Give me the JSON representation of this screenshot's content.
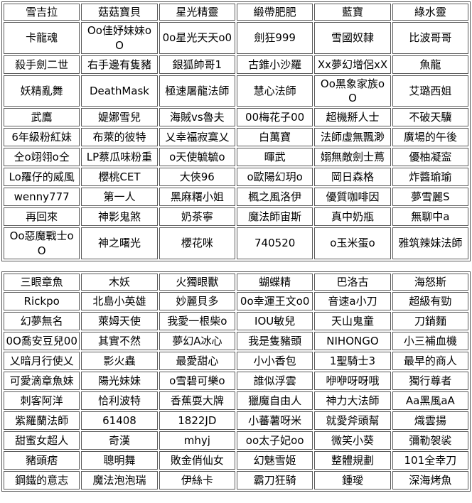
{
  "tables": [
    {
      "name": "ranking-table-top",
      "headers": [
        "雪吉拉",
        "菇菇寶貝",
        "星光精靈",
        "緞帶肥肥",
        "藍寶",
        "綠水靈"
      ],
      "rows": [
        [
          "卡龍魂",
          "Oo佳妤妹妹oO",
          "0o星光天天o0",
          "劍狂999",
          "雪國奴隸",
          "比波哥哥"
        ],
        [
          "殺手劍二世",
          "右手邊有隻豬",
          "銀狐帥哥1",
          "古錐小沙羅",
          "Xx夢幻增侶xX",
          "魚龍"
        ],
        [
          "妖精亂舞",
          "DeathMask",
          "極速屠龍法師",
          "慧心法師",
          "Oo黑象家族oO",
          "艾璐西姐"
        ],
        [
          "武鷹",
          "媞娜雪兒",
          "海賊vs魯夫",
          "00梅花子00",
          "超機掰人士",
          "不破天驥"
        ],
        [
          "6年級粉紅妹",
          "布萊的彼特",
          "乂幸福寂寞乂",
          "白萬寶",
          "法師虛無飄渺",
          "廣場的午後"
        ],
        [
          "仝o翊翎o仝",
          "LP蔡瓜味粉重",
          "o天使毓毓o",
          "暉武",
          "嫋無敵劍士蔦",
          "優柚凝寍"
        ],
        [
          "Lo羅仔的威風",
          "櫻桃CET",
          "大俠96",
          "o歐陽幻玥o",
          "岡日森格",
          "炸醬瑜瑜"
        ],
        [
          "wenny777",
          "第一人",
          "黑麻糬小姐",
          "楓之風洛伊",
          "優質咖啡因",
          "夢雪麗S"
        ],
        [
          "再回來",
          "神影鬼煞",
          "奶茶寧",
          "魔法師宙斯",
          "真中奶瓶",
          "無聊中a"
        ],
        [
          "Oo惡魔戰士oO",
          "神之曙光",
          "櫻花咪",
          "740520",
          "o玉米蛋o",
          "雅筑辣妹法師"
        ]
      ]
    },
    {
      "name": "ranking-table-bottom",
      "headers": [
        "三眼章魚",
        "木妖",
        "火獨眼獸",
        "蝴蝶精",
        "巴洛古",
        "海怒斯"
      ],
      "rows": [
        [
          "Rickpo",
          "北島小英雄",
          "妙麗貝多",
          "0o幸運王文o0",
          "音速a小刀",
          "超級有勁"
        ],
        [
          "幻夢無名",
          "萊姆天使",
          "我愛一根柴o",
          "IOU敏兒",
          "天山鬼童",
          "刀銷麵"
        ],
        [
          "0O喬安豆兒00",
          "其實不然",
          "夢幻A冰心",
          "我是隻豬頭",
          "NIHONGO",
          "小三補血機"
        ],
        [
          "乂暗月行使乂",
          "影火蟲",
          "最愛甜心",
          "小小香包",
          "1聖騎士3",
          "最早的商人"
        ],
        [
          "可愛滴章魚妹",
          "陽光妹妹",
          "o雪碧可樂o",
          "誰似浮雲",
          "咿咿呀呀哦",
          "獨行尊者"
        ],
        [
          "刺客阿洋",
          "恰利波特",
          "香蕉耍大牌",
          "獵魔自由人",
          "神力大法師",
          "Aa黑風aA"
        ],
        [
          "紫羅蘭法師",
          "61408",
          "1822JD",
          "小蕃薯呀米",
          "就愛斧頭幫",
          "熾雲揚"
        ],
        [
          "甜蜜女超人",
          "奇漢",
          "mhyj",
          "oo太子妃oo",
          "微笑小葵",
          "彌勒袈裟"
        ],
        [
          "豬頭痞",
          "聰明舞",
          "敗金俏仙女",
          "幻魅雪姬",
          "整體規劃",
          "101全幸刀"
        ],
        [
          "鋼鐵的意志",
          "魔法泡泡瑞",
          "伊絲卡",
          "霸刀狂騎",
          "鍾璦",
          "深海烤魚"
        ]
      ]
    }
  ],
  "colors": {
    "border": "#5a5a5a",
    "text": "#000000",
    "background": "#ffffff"
  }
}
